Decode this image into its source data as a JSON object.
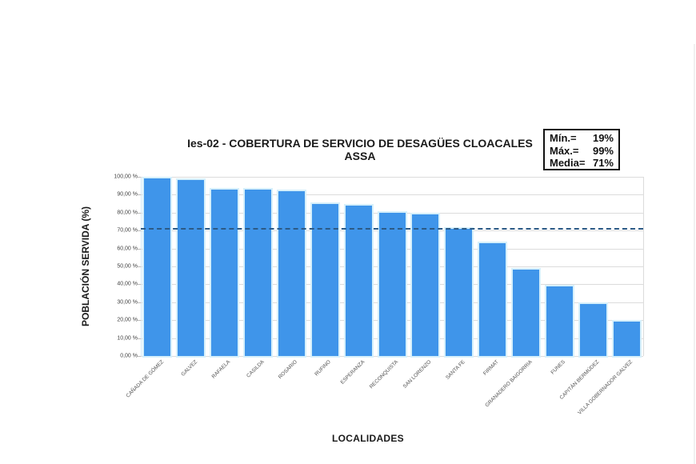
{
  "title": {
    "line1": "Ies-02 - COBERTURA DE SERVICIO DE DESAGÜES CLOACALES",
    "line2": "ASSA"
  },
  "stats": {
    "min_label": "Mín.=",
    "min_value": "19%",
    "max_label": "Máx.=",
    "max_value": "99%",
    "mean_label": "Media=",
    "mean_value": "71%"
  },
  "axes": {
    "ylabel": "POBLACIÓN SERVIDA (%)",
    "xlabel": "LOCALIDADES",
    "yticks": [
      "0,00 %",
      "10,00 %",
      "20,00 %",
      "30,00 %",
      "40,00 %",
      "50,00 %",
      "60,00 %",
      "70,00 %",
      "80,00 %",
      "90,00 %",
      "100,00 %"
    ]
  },
  "colors": {
    "bar": "#3f95ea",
    "mean_line": "#2c5a86"
  },
  "chart_data": {
    "type": "bar",
    "title": "Ies-02 - COBERTURA DE SERVICIO DE DESAGÜES CLOACALES ASSA",
    "xlabel": "LOCALIDADES",
    "ylabel": "POBLACIÓN SERVIDA (%)",
    "ylim": [
      0,
      100
    ],
    "yticks": [
      0,
      10,
      20,
      30,
      40,
      50,
      60,
      70,
      80,
      90,
      100
    ],
    "grid": true,
    "legend": "none",
    "categories": [
      "CAÑADA DE GÓMEZ",
      "GALVEZ",
      "RAFAELA",
      "CASILDA",
      "ROSARIO",
      "RUFINO",
      "ESPERANZA",
      "RECONQUISTA",
      "SAN LORENZO",
      "SANTA FE",
      "FIRMAT",
      "GRANADERO BAIGORRIA",
      "FUNES",
      "CAPITÁN BERMÚDEZ",
      "VILLA GOBERNADOR GALVEZ"
    ],
    "values": [
      99,
      98,
      93,
      93,
      92,
      85,
      84,
      80,
      79,
      71,
      63,
      48,
      39,
      29,
      19
    ],
    "reference_line": {
      "label": "Media",
      "value": 71,
      "style": "dashed"
    },
    "annotations": {
      "Mín.": "19%",
      "Máx.": "99%",
      "Media": "71%"
    }
  }
}
